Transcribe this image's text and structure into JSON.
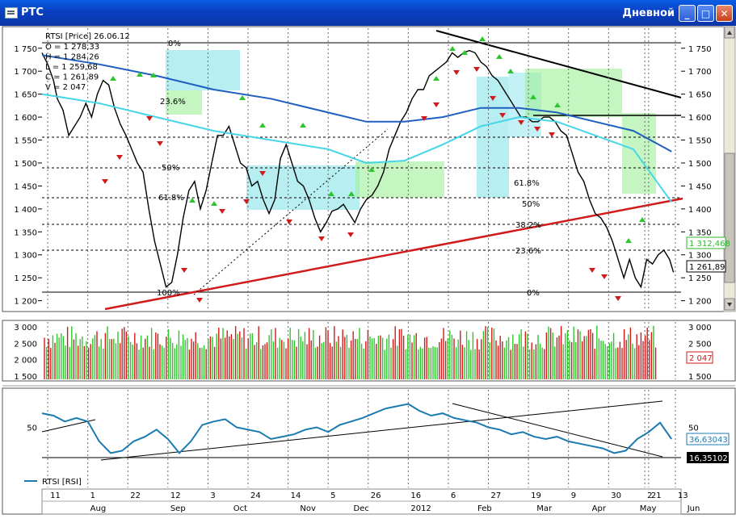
{
  "window": {
    "title": "РТС",
    "period": "Дневной",
    "buttons": {
      "minimize": "_",
      "maximize": "□",
      "close": "✕"
    }
  },
  "chart_data": [
    {
      "type": "line",
      "panel": "price",
      "title": "RTSI [Price] 26.06.12",
      "ohlc_readout": [
        "O = 1 278,33",
        "H = 1 284,26",
        "L = 1 259,68",
        "C = 1 261,89",
        "V = 2 047"
      ],
      "ylim": [
        1180,
        1790
      ],
      "y_ticks": [
        1750,
        1700,
        1650,
        1600,
        1550,
        1500,
        1450,
        1400,
        1350,
        1300,
        1250,
        1200
      ],
      "y_tick_labels": [
        "1 750",
        "1 700",
        "1 650",
        "1 600",
        "1 550",
        "1 500",
        "1 450",
        "1 400",
        "1 350",
        "1 300",
        "1 250",
        "1 200"
      ],
      "x_range_days": [
        0,
        335
      ],
      "series": [
        {
          "role": "close",
          "color": "#000000",
          "x": [
            0,
            3,
            6,
            8,
            11,
            14,
            17,
            20,
            23,
            26,
            29,
            32,
            35,
            38,
            41,
            44,
            47,
            50,
            53,
            56,
            59,
            62,
            65,
            68,
            71,
            74,
            77,
            80,
            83,
            86,
            89,
            92,
            95,
            98,
            101,
            104,
            107,
            110,
            113,
            116,
            119,
            122,
            125,
            128,
            131,
            134,
            137,
            140,
            143,
            146,
            149,
            152,
            155,
            158,
            161,
            164,
            167,
            170,
            173,
            176,
            179,
            182,
            185,
            188,
            191,
            194,
            197,
            200,
            203,
            206,
            209,
            212,
            215,
            218,
            221,
            224,
            227,
            230,
            233,
            236,
            239,
            242,
            245,
            248,
            251,
            254,
            257,
            260,
            263,
            266,
            269,
            272,
            275,
            278,
            281,
            284,
            287,
            290,
            293,
            296,
            299,
            302,
            305,
            308,
            311,
            314,
            317,
            320,
            323,
            326,
            329,
            331
          ],
          "values": [
            1740,
            1715,
            1680,
            1640,
            1615,
            1560,
            1580,
            1600,
            1630,
            1600,
            1650,
            1680,
            1670,
            1620,
            1585,
            1560,
            1530,
            1500,
            1480,
            1400,
            1330,
            1280,
            1230,
            1240,
            1300,
            1380,
            1440,
            1460,
            1400,
            1440,
            1500,
            1560,
            1560,
            1580,
            1540,
            1500,
            1490,
            1450,
            1460,
            1420,
            1390,
            1420,
            1510,
            1540,
            1500,
            1460,
            1450,
            1420,
            1380,
            1350,
            1370,
            1395,
            1400,
            1410,
            1390,
            1370,
            1400,
            1420,
            1430,
            1450,
            1480,
            1530,
            1560,
            1590,
            1610,
            1640,
            1660,
            1660,
            1690,
            1700,
            1710,
            1720,
            1740,
            1730,
            1740,
            1745,
            1740,
            1720,
            1710,
            1690,
            1680,
            1660,
            1640,
            1620,
            1600,
            1600,
            1590,
            1590,
            1600,
            1600,
            1590,
            1570,
            1560,
            1520,
            1480,
            1460,
            1420,
            1390,
            1380,
            1360,
            1330,
            1290,
            1250,
            1290,
            1250,
            1230,
            1290,
            1280,
            1300,
            1310,
            1290,
            1262
          ]
        },
        {
          "role": "sma-long",
          "color": "#1f5fbf",
          "x": [
            0,
            30,
            60,
            90,
            120,
            150,
            170,
            190,
            210,
            230,
            250,
            270,
            290,
            310,
            330
          ],
          "values": [
            1735,
            1715,
            1690,
            1660,
            1640,
            1610,
            1590,
            1590,
            1600,
            1620,
            1620,
            1610,
            1590,
            1570,
            1525
          ]
        },
        {
          "role": "sma-mid",
          "color": "#46d6e8",
          "x": [
            0,
            30,
            60,
            90,
            120,
            150,
            170,
            190,
            210,
            230,
            250,
            270,
            290,
            310,
            330
          ],
          "values": [
            1650,
            1630,
            1600,
            1570,
            1550,
            1530,
            1500,
            1505,
            1540,
            1580,
            1600,
            1590,
            1560,
            1530,
            1415
          ]
        }
      ],
      "fib_levels": [
        "0%",
        "23.6%",
        "50%",
        "61.8%",
        "100%",
        "0%",
        "23.6%",
        "38.2%",
        "50%",
        "61.8%"
      ],
      "right_labels": [
        {
          "label": "1 312,468",
          "color": "#2cb52c"
        },
        {
          "label": "1 261,89",
          "color": "#000000"
        }
      ]
    },
    {
      "type": "bar",
      "panel": "volume",
      "ylim": [
        1400,
        3100
      ],
      "y_ticks": [
        3000,
        2500,
        2000,
        1500
      ],
      "y_tick_labels": [
        "3 000",
        "2 500",
        "2 000",
        "1 500"
      ],
      "last_value_label": "2 047"
    },
    {
      "type": "line",
      "panel": "rsi",
      "legend": "RTSI [RSI]",
      "ylim": [
        0,
        80
      ],
      "y_ticks": [
        50
      ],
      "y_tick_labels": [
        "50"
      ],
      "series": [
        {
          "name": "RTSI [RSI]",
          "color": "#1a7bb0",
          "x": [
            0,
            6,
            12,
            18,
            24,
            30,
            36,
            42,
            48,
            54,
            60,
            66,
            72,
            78,
            84,
            90,
            96,
            102,
            108,
            114,
            120,
            126,
            132,
            138,
            144,
            150,
            156,
            162,
            168,
            174,
            180,
            186,
            192,
            198,
            204,
            210,
            216,
            222,
            228,
            234,
            240,
            246,
            252,
            258,
            264,
            270,
            276,
            282,
            288,
            294,
            300,
            306,
            312,
            318,
            324,
            330
          ],
          "values": [
            62,
            60,
            55,
            58,
            55,
            38,
            28,
            30,
            38,
            42,
            48,
            40,
            28,
            38,
            52,
            55,
            57,
            50,
            48,
            46,
            40,
            42,
            44,
            48,
            50,
            46,
            52,
            55,
            58,
            62,
            66,
            68,
            70,
            64,
            60,
            62,
            58,
            56,
            54,
            50,
            48,
            44,
            46,
            42,
            40,
            42,
            38,
            36,
            34,
            32,
            28,
            30,
            40,
            46,
            54,
            40
          ]
        }
      ],
      "right_labels": [
        {
          "label": "36,63043",
          "color": "#1a7bb0"
        },
        {
          "label": "16,35102",
          "color": "#ffffff"
        }
      ]
    }
  ],
  "x_axis": {
    "day_labels": [
      {
        "day": 3,
        "label": "11"
      },
      {
        "day": 24,
        "label": "1"
      },
      {
        "day": 45,
        "label": "22"
      },
      {
        "day": 66,
        "label": "12"
      },
      {
        "day": 87,
        "label": "3"
      },
      {
        "day": 108,
        "label": "24"
      },
      {
        "day": 129,
        "label": "14"
      },
      {
        "day": 150,
        "label": "5"
      },
      {
        "day": 171,
        "label": "26"
      },
      {
        "day": 192,
        "label": "16"
      },
      {
        "day": 213,
        "label": "6"
      },
      {
        "day": 234,
        "label": "27"
      },
      {
        "day": 255,
        "label": "19"
      },
      {
        "day": 276,
        "label": "9"
      },
      {
        "day": 297,
        "label": "30"
      },
      {
        "day": 316,
        "label": "2"
      },
      {
        "day": 318,
        "label": "21"
      },
      {
        "day": 332,
        "label": "13"
      }
    ],
    "month_labels": [
      {
        "day": 24,
        "label": "Aug"
      },
      {
        "day": 66,
        "label": "Sep"
      },
      {
        "day": 99,
        "label": "Oct"
      },
      {
        "day": 134,
        "label": "Nov"
      },
      {
        "day": 162,
        "label": "Dec"
      },
      {
        "day": 192,
        "label": "2012"
      },
      {
        "day": 227,
        "label": "Feb"
      },
      {
        "day": 258,
        "label": "Mar"
      },
      {
        "day": 287,
        "label": "Apr"
      },
      {
        "day": 312,
        "label": "May"
      },
      {
        "day": 337,
        "label": "Jun"
      }
    ]
  }
}
